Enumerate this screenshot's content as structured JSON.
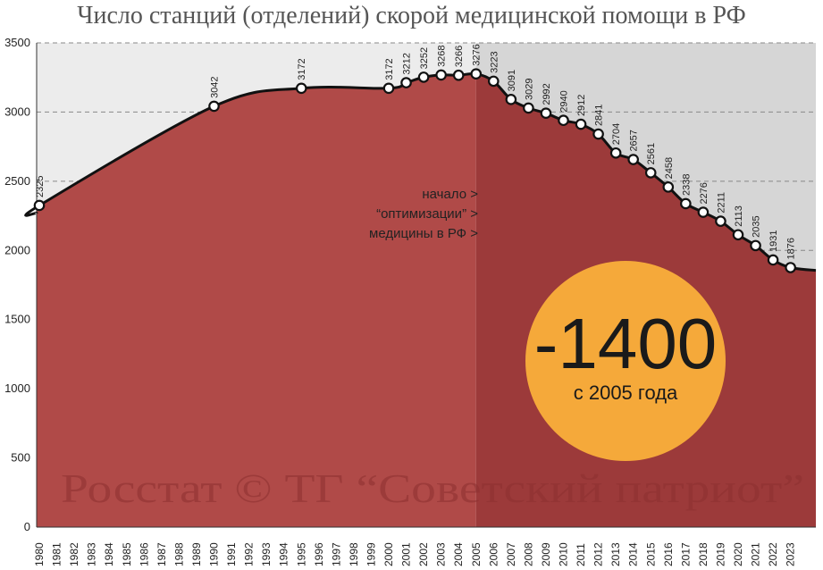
{
  "chart_data": {
    "type": "area",
    "title": "Число станций (отделений) скорой медицинской помощи в РФ",
    "ylim": [
      0,
      3500
    ],
    "yticks": [
      0,
      500,
      1000,
      1500,
      2000,
      2500,
      3000,
      3500
    ],
    "grid": true,
    "years": [
      "1980",
      "1981",
      "1982",
      "1983",
      "1984",
      "1985",
      "1986",
      "1987",
      "1988",
      "1989",
      "1990",
      "1991",
      "1992",
      "1993",
      "1994",
      "1995",
      "1996",
      "1997",
      "1998",
      "1999",
      "2000",
      "2001",
      "2002",
      "2003",
      "2004",
      "2005",
      "2006",
      "2007",
      "2008",
      "2009",
      "2010",
      "2011",
      "2012",
      "2013",
      "2014",
      "2015",
      "2016",
      "2017",
      "2018",
      "2019",
      "2020",
      "2021",
      "2022",
      "2023"
    ],
    "points": [
      {
        "year": 1980,
        "value": 2325
      },
      {
        "year": 1990,
        "value": 3042
      },
      {
        "year": 1995,
        "value": 3172
      },
      {
        "year": 2000,
        "value": 3172
      },
      {
        "year": 2001,
        "value": 3212
      },
      {
        "year": 2002,
        "value": 3252
      },
      {
        "year": 2003,
        "value": 3268
      },
      {
        "year": 2004,
        "value": 3266
      },
      {
        "year": 2005,
        "value": 3276
      },
      {
        "year": 2006,
        "value": 3223
      },
      {
        "year": 2007,
        "value": 3091
      },
      {
        "year": 2008,
        "value": 3029
      },
      {
        "year": 2009,
        "value": 2992
      },
      {
        "year": 2010,
        "value": 2940
      },
      {
        "year": 2011,
        "value": 2912
      },
      {
        "year": 2012,
        "value": 2841
      },
      {
        "year": 2013,
        "value": 2704
      },
      {
        "year": 2014,
        "value": 2657
      },
      {
        "year": 2015,
        "value": 2561
      },
      {
        "year": 2016,
        "value": 2458
      },
      {
        "year": 2017,
        "value": 2338
      },
      {
        "year": 2018,
        "value": 2276
      },
      {
        "year": 2019,
        "value": 2211
      },
      {
        "year": 2020,
        "value": 2113
      },
      {
        "year": 2021,
        "value": 2035
      },
      {
        "year": 2022,
        "value": 1931
      },
      {
        "year": 2023,
        "value": 1876
      }
    ],
    "highlight_from_year": 2005,
    "annotation_lines": [
      "начало >",
      "“оптимизации” >",
      "медицины в РФ >"
    ],
    "watermark": "Росстат © ТГ “Советский патриот”",
    "badge": {
      "big": "-1400",
      "small": "с 2005 года"
    },
    "colors": {
      "area": "#b04a48",
      "area_dark": "#9c3a3a",
      "bg": "#ececec",
      "bg_dark": "#d6d6d6",
      "line": "#111111",
      "badge": "#f5a93a",
      "grid": "#888888"
    }
  }
}
